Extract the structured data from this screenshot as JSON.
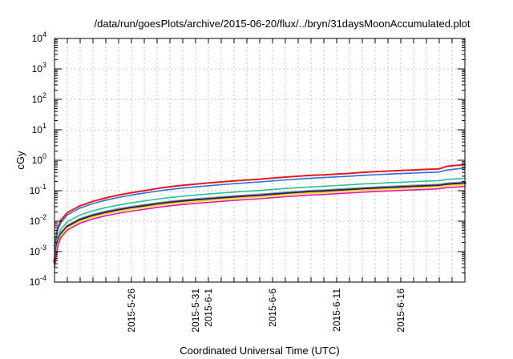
{
  "chart_data": {
    "type": "line",
    "title": "/data/run/goesPlots/archive/2015-06-20/flux/../bryn/31daysMoonAccumulated.plot",
    "xlabel": "Coordinated Universal Time (UTC)",
    "ylabel": "cGy",
    "yscale": "log",
    "ylim": [
      0.0001,
      10000
    ],
    "xlim": [
      "2015-05-20",
      "2015-06-21"
    ],
    "grid": true,
    "legend": "none",
    "y_ticks": [
      {
        "value": 0.0001,
        "base": "10",
        "exp": "-4"
      },
      {
        "value": 0.001,
        "base": "10",
        "exp": "-3"
      },
      {
        "value": 0.01,
        "base": "10",
        "exp": "-2"
      },
      {
        "value": 0.1,
        "base": "10",
        "exp": "-1"
      },
      {
        "value": 1,
        "base": "10",
        "exp": "0"
      },
      {
        "value": 10,
        "base": "10",
        "exp": "1"
      },
      {
        "value": 100,
        "base": "10",
        "exp": "2"
      },
      {
        "value": 1000,
        "base": "10",
        "exp": "3"
      },
      {
        "value": 10000,
        "base": "10",
        "exp": "4"
      }
    ],
    "x_ticks": [
      "2015-5-26",
      "2015-5-31",
      "2015-6-1",
      "2015-6-6",
      "2015-6-11",
      "2015-6-16"
    ],
    "x_tick_dates": [
      "2015-05-26",
      "2015-05-31",
      "2015-06-01",
      "2015-06-06",
      "2015-06-11",
      "2015-06-16"
    ],
    "x_minor_dates": [
      "2015-05-20",
      "2015-05-21",
      "2015-05-22",
      "2015-05-23",
      "2015-05-24",
      "2015-05-25",
      "2015-05-26",
      "2015-05-27",
      "2015-05-28",
      "2015-05-29",
      "2015-05-30",
      "2015-05-31",
      "2015-06-01",
      "2015-06-02",
      "2015-06-03",
      "2015-06-04",
      "2015-06-05",
      "2015-06-06",
      "2015-06-07",
      "2015-06-08",
      "2015-06-09",
      "2015-06-10",
      "2015-06-11",
      "2015-06-12",
      "2015-06-13",
      "2015-06-14",
      "2015-06-15",
      "2015-06-16",
      "2015-06-17",
      "2015-06-18",
      "2015-06-19",
      "2015-06-20",
      "2015-06-21"
    ],
    "x": [
      "2015-05-20",
      "2015-05-20T06:00",
      "2015-05-20T12:00",
      "2015-05-21",
      "2015-05-22",
      "2015-05-23",
      "2015-05-24",
      "2015-05-25",
      "2015-05-26",
      "2015-05-27",
      "2015-05-28",
      "2015-05-29",
      "2015-05-30",
      "2015-05-31",
      "2015-06-01",
      "2015-06-02",
      "2015-06-03",
      "2015-06-04",
      "2015-06-05",
      "2015-06-06",
      "2015-06-07",
      "2015-06-08",
      "2015-06-09",
      "2015-06-10",
      "2015-06-11",
      "2015-06-12",
      "2015-06-13",
      "2015-06-14",
      "2015-06-15",
      "2015-06-16",
      "2015-06-17",
      "2015-06-18",
      "2015-06-19",
      "2015-06-19T12:00",
      "2015-06-20",
      "2015-06-21"
    ],
    "series": [
      {
        "color": "#e41a1c",
        "width": 2,
        "values": [
          0.0015,
          0.006,
          0.011,
          0.019,
          0.032,
          0.045,
          0.058,
          0.072,
          0.086,
          0.1,
          0.118,
          0.135,
          0.15,
          0.165,
          0.18,
          0.195,
          0.21,
          0.225,
          0.24,
          0.26,
          0.28,
          0.3,
          0.32,
          0.33,
          0.35,
          0.37,
          0.4,
          0.42,
          0.44,
          0.46,
          0.48,
          0.5,
          0.52,
          0.62,
          0.66,
          0.72
        ]
      },
      {
        "color": "#2e6fd6",
        "width": 1.6,
        "values": [
          0.0012,
          0.005,
          0.009,
          0.016,
          0.027,
          0.038,
          0.049,
          0.06,
          0.072,
          0.084,
          0.097,
          0.11,
          0.122,
          0.134,
          0.146,
          0.158,
          0.17,
          0.182,
          0.195,
          0.21,
          0.226,
          0.242,
          0.258,
          0.27,
          0.285,
          0.3,
          0.32,
          0.335,
          0.35,
          0.365,
          0.38,
          0.395,
          0.41,
          0.47,
          0.5,
          0.56
        ]
      },
      {
        "color": "#2cc290",
        "width": 1.6,
        "values": [
          0.0007,
          0.003,
          0.0055,
          0.0095,
          0.016,
          0.022,
          0.028,
          0.034,
          0.04,
          0.046,
          0.053,
          0.06,
          0.066,
          0.072,
          0.078,
          0.084,
          0.09,
          0.096,
          0.102,
          0.11,
          0.118,
          0.126,
          0.134,
          0.14,
          0.148,
          0.156,
          0.166,
          0.174,
          0.182,
          0.19,
          0.198,
          0.206,
          0.214,
          0.232,
          0.24,
          0.255
        ]
      },
      {
        "color": "#8e9aa8",
        "width": 3,
        "values": [
          0.0005,
          0.0022,
          0.004,
          0.007,
          0.0118,
          0.0162,
          0.0205,
          0.0248,
          0.0291,
          0.0335,
          0.0385,
          0.0435,
          0.0478,
          0.052,
          0.0562,
          0.0605,
          0.065,
          0.0695,
          0.074,
          0.08,
          0.086,
          0.092,
          0.098,
          0.102,
          0.108,
          0.114,
          0.121,
          0.127,
          0.133,
          0.139,
          0.145,
          0.151,
          0.157,
          0.169,
          0.175,
          0.186
        ]
      },
      {
        "color": "#231d5e",
        "width": 3,
        "values": [
          0.00045,
          0.002,
          0.0037,
          0.0065,
          0.011,
          0.015,
          0.019,
          0.023,
          0.027,
          0.031,
          0.0357,
          0.0404,
          0.0444,
          0.0484,
          0.0524,
          0.0564,
          0.0605,
          0.0646,
          0.0688,
          0.0744,
          0.08,
          0.0856,
          0.0912,
          0.095,
          0.1005,
          0.106,
          0.1125,
          0.118,
          0.1236,
          0.129,
          0.1347,
          0.14,
          0.146,
          0.157,
          0.163,
          0.173
        ]
      },
      {
        "color": "#f2d22e",
        "width": 2,
        "values": [
          0.0004,
          0.0018,
          0.0034,
          0.006,
          0.01,
          0.0138,
          0.0175,
          0.0212,
          0.0249,
          0.0286,
          0.033,
          0.0373,
          0.041,
          0.0447,
          0.0484,
          0.052,
          0.0558,
          0.0596,
          0.0635,
          0.0686,
          0.0738,
          0.079,
          0.0842,
          0.0877,
          0.0928,
          0.0979,
          0.104,
          0.109,
          0.114,
          0.119,
          0.1243,
          0.129,
          0.135,
          0.145,
          0.15,
          0.16
        ]
      },
      {
        "color": "#e8199b",
        "width": 1.6,
        "values": [
          0.0003,
          0.0015,
          0.0029,
          0.0051,
          0.0086,
          0.0119,
          0.015,
          0.0182,
          0.0213,
          0.0245,
          0.0283,
          0.032,
          0.0352,
          0.0384,
          0.0415,
          0.0447,
          0.048,
          0.0512,
          0.0545,
          0.059,
          0.0634,
          0.0679,
          0.0724,
          0.0754,
          0.0798,
          0.0842,
          0.0894,
          0.0938,
          0.098,
          0.1024,
          0.107,
          0.111,
          0.116,
          0.125,
          0.129,
          0.138
        ]
      }
    ]
  }
}
